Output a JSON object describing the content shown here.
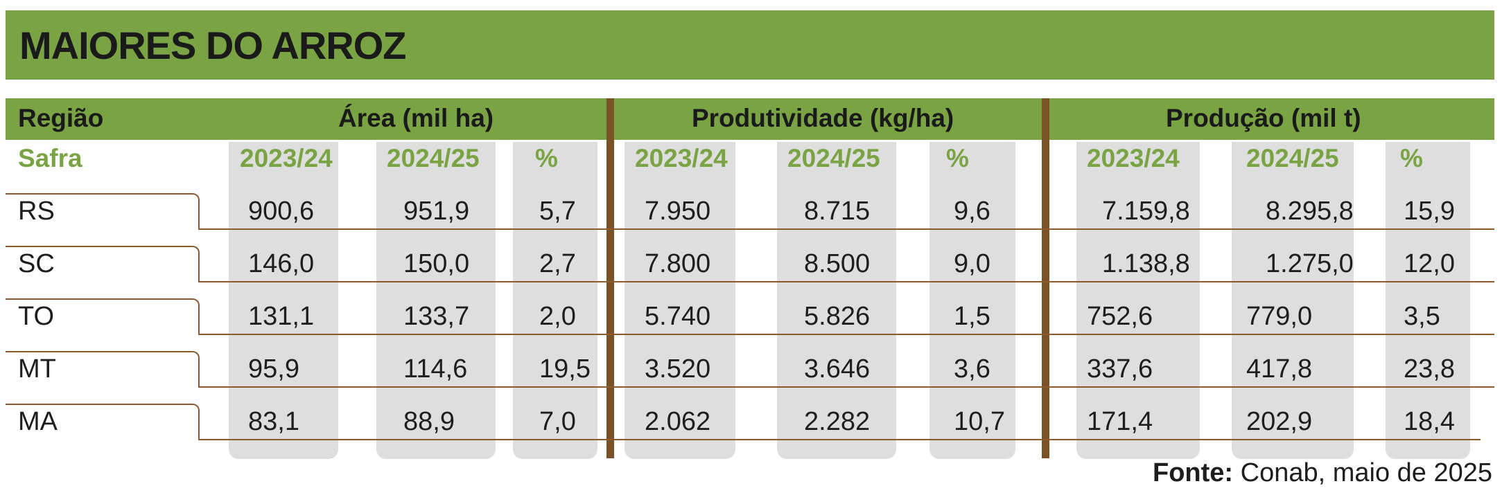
{
  "title": "MAIORES DO ARROZ",
  "headers": {
    "regiao": "Região",
    "area": "Área (mil ha)",
    "produtividade": "Produtividade (kg/ha)",
    "producao": "Produção (mil t)"
  },
  "safra_label": "Safra",
  "subheaders": [
    "2023/24",
    "2024/25",
    "%",
    "2023/24",
    "2024/25",
    "%",
    "2023/24",
    "2024/25",
    "%"
  ],
  "rows": [
    {
      "regiao": "RS",
      "values": [
        "900,6",
        "951,9",
        "5,7",
        "7.950",
        "8.715",
        "9,6",
        "7.159,8",
        "8.295,8",
        "15,9"
      ]
    },
    {
      "regiao": "SC",
      "values": [
        "146,0",
        "150,0",
        "2,7",
        "7.800",
        "8.500",
        "9,0",
        "1.138,8",
        "1.275,0",
        "12,0"
      ]
    },
    {
      "regiao": "TO",
      "values": [
        "131,1",
        "133,7",
        "2,0",
        "5.740",
        "5.826",
        "1,5",
        "752,6",
        "779,0",
        "3,5"
      ]
    },
    {
      "regiao": "MT",
      "values": [
        "95,9",
        "114,6",
        "19,5",
        "3.520",
        "3.646",
        "3,6",
        "337,6",
        "417,8",
        "23,8"
      ]
    },
    {
      "regiao": "MA",
      "values": [
        "83,1",
        "88,9",
        "7,0",
        "2.062",
        "2.282",
        "10,7",
        "171,4",
        "202,9",
        "18,4"
      ]
    }
  ],
  "fonte": {
    "label": "Fonte:",
    "text": " Conab, maio de 2025"
  },
  "colors": {
    "green": "#7aa444",
    "brown": "#7a5228",
    "pill": "#dedede"
  }
}
